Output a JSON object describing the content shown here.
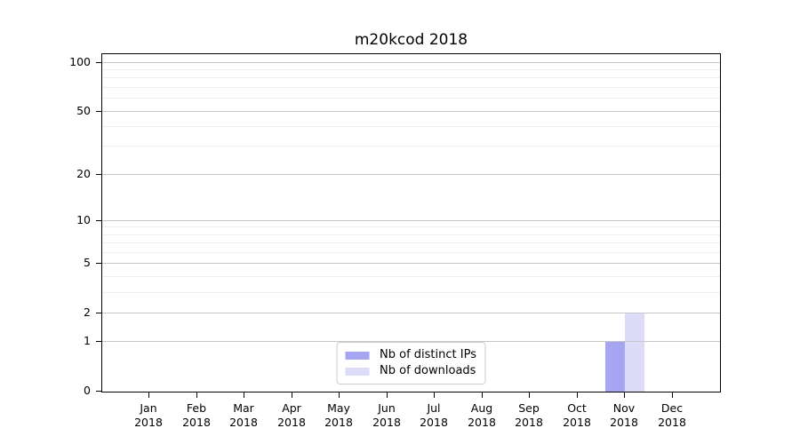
{
  "title": "m20kcod 2018",
  "chart_data": {
    "type": "bar",
    "title": "m20kcod 2018",
    "categories": [
      "Jan 2018",
      "Feb 2018",
      "Mar 2018",
      "Apr 2018",
      "May 2018",
      "Jun 2018",
      "Jul 2018",
      "Aug 2018",
      "Sep 2018",
      "Oct 2018",
      "Nov 2018",
      "Dec 2018"
    ],
    "series": [
      {
        "name": "Nb of distinct IPs",
        "color": "#a5a5f2",
        "values": [
          0,
          0,
          0,
          0,
          0,
          0,
          0,
          0,
          0,
          0,
          1,
          0
        ]
      },
      {
        "name": "Nb of downloads",
        "color": "#dcdcf8",
        "values": [
          0,
          0,
          0,
          0,
          0,
          0,
          0,
          0,
          0,
          0,
          2,
          0
        ]
      }
    ],
    "xlabel": "",
    "ylabel": "",
    "yscale": "log1p",
    "ylim": [
      0,
      113
    ],
    "yticks": [
      0,
      1,
      2,
      5,
      10,
      20,
      50,
      100
    ],
    "minor_yticks": [
      3,
      4,
      6,
      7,
      8,
      9,
      30,
      40,
      60,
      70,
      80,
      90
    ],
    "grid": "horizontal",
    "legend_position": "lower center",
    "colors": {
      "major_grid": "#c6c6c6",
      "minor_grid": "#eeeeee",
      "axis": "#000000",
      "text": "#000000"
    }
  }
}
